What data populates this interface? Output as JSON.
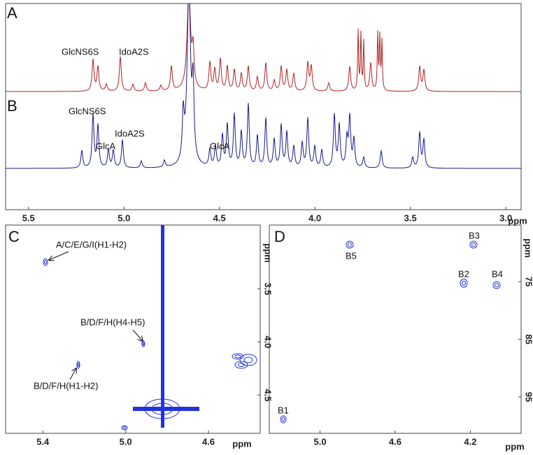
{
  "spectrum_1d": {
    "xlim": [
      5.62,
      2.92
    ],
    "xticks": [
      5.5,
      {
        "value": 5,
        "label": "5.0"
      },
      4.5,
      {
        "value": 4,
        "label": "4.0"
      },
      3.5,
      {
        "value": 3,
        "label": "3.0"
      }
    ],
    "x_label": "ppm",
    "panels": [
      {
        "label": "A",
        "annotations": [
          "GlcNS6S",
          "IdoA2S"
        ]
      },
      {
        "label": "B",
        "annotations": [
          "GlcNS6S",
          "GlcA",
          "IdoA2S",
          "GlcA"
        ]
      }
    ]
  },
  "panel_c": {
    "label": "C",
    "xlim": [
      5.58,
      4.35
    ],
    "xticks": [
      5.4,
      {
        "value": 5,
        "label": "5.0"
      },
      4.6
    ],
    "x_label": "ppm",
    "ylim": [
      2.9,
      4.86
    ],
    "yticks": [
      3.5,
      {
        "value": 4,
        "label": "4.0"
      },
      4.5
    ],
    "y_label": "ppm",
    "annotations": [
      "A/C/E/G/I(H1-H2)",
      "B/D/F/H(H4-H5)",
      "B/D/F/H(H1-H2)"
    ]
  },
  "panel_d": {
    "label": "D",
    "xlim": [
      5.27,
      3.93
    ],
    "xticks": [
      {
        "value": 5,
        "label": "5.0"
      },
      4.6,
      4.2
    ],
    "x_label": "ppm",
    "ylim": [
      65.2,
      101.3
    ],
    "yticks": [
      75,
      85,
      95
    ],
    "y_label": "ppm",
    "annotations": [
      "B5",
      "B3",
      "B2",
      "B4",
      "B1"
    ]
  }
}
